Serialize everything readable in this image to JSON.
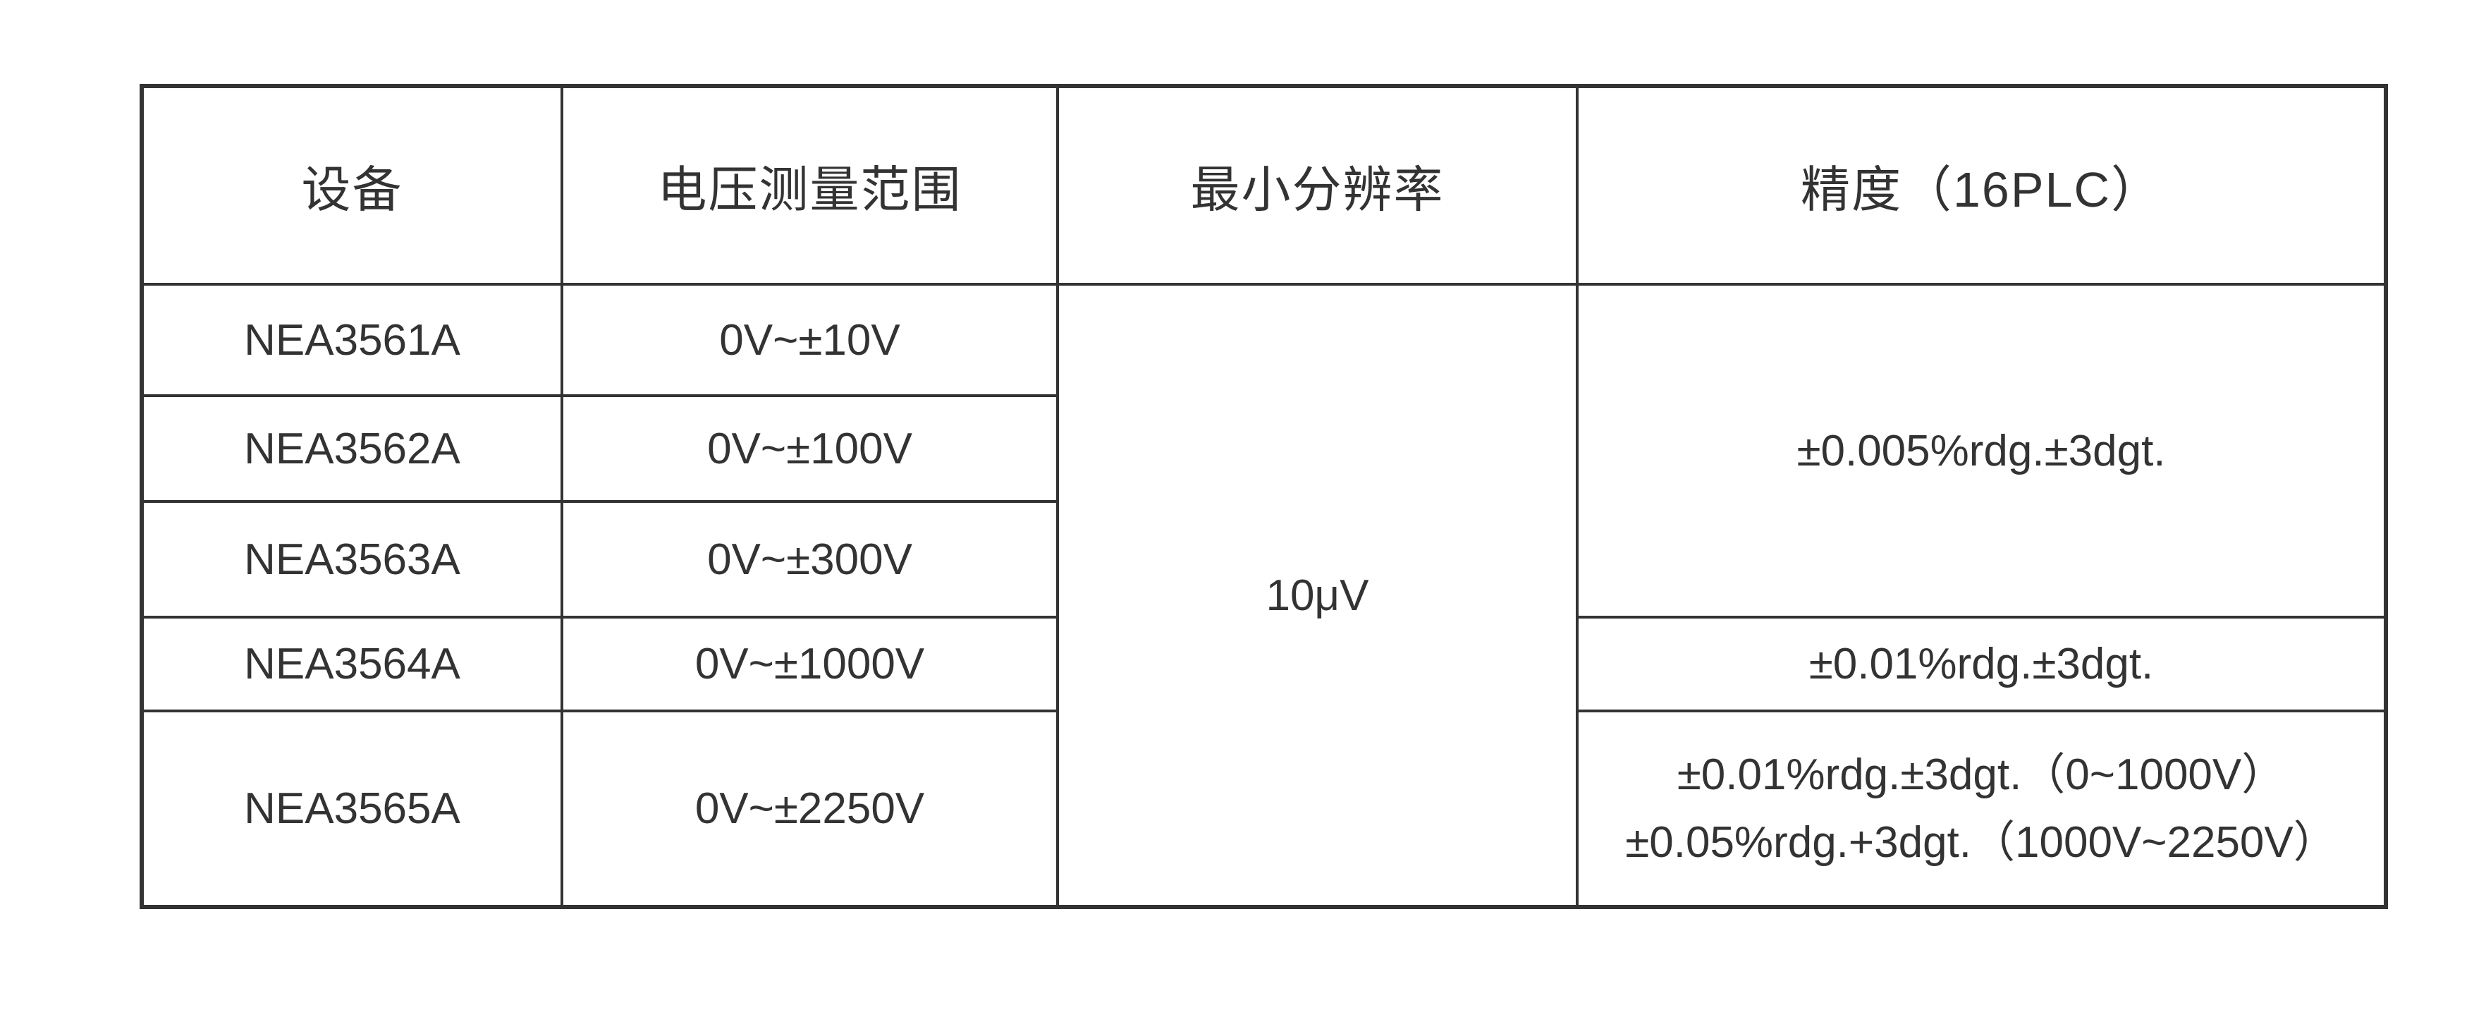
{
  "table": {
    "headers": [
      {
        "label": "设备"
      },
      {
        "label": "电压测量范围"
      },
      {
        "label": "最小分辨率"
      },
      {
        "label": "精度（16PLC）"
      }
    ],
    "rows": [
      {
        "device": "NEA3561A",
        "voltage_range": "0V~±10V"
      },
      {
        "device": "NEA3562A",
        "voltage_range": "0V~±100V"
      },
      {
        "device": "NEA3563A",
        "voltage_range": "0V~±300V"
      },
      {
        "device": "NEA3564A",
        "voltage_range": "0V~±1000V"
      },
      {
        "device": "NEA3565A",
        "voltage_range": "0V~±2250V"
      }
    ],
    "min_resolution": "10μV",
    "accuracy": {
      "rows_1_to_3": "±0.005%rdg.±3dgt.",
      "row_4": "±0.01%rdg.±3dgt.",
      "row_5_line1": "±0.01%rdg.±3dgt.（0~1000V）",
      "row_5_line2": "±0.05%rdg.+3dgt.（1000V~2250V）"
    }
  },
  "colors": {
    "border": "#333333",
    "text": "#333333",
    "background": "#ffffff"
  }
}
